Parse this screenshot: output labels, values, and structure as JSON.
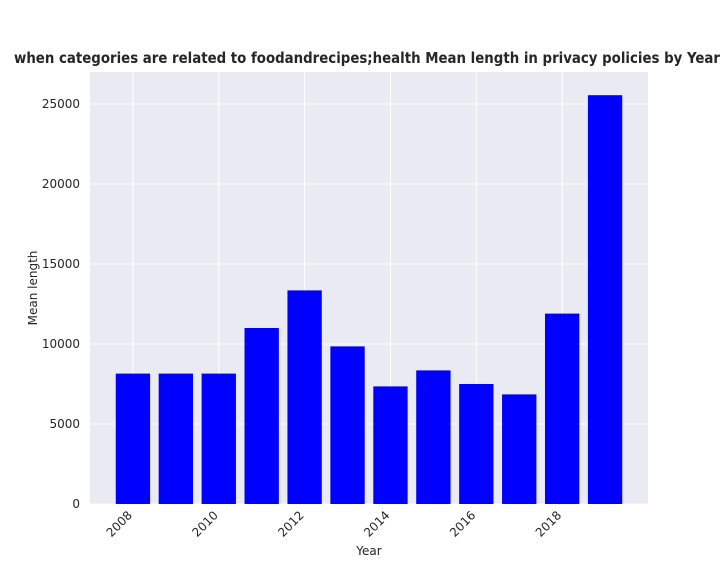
{
  "chart_data": {
    "type": "bar",
    "title": "when categories are related to foodandrecipes;health Mean length in privacy policies by Year",
    "xlabel": "Year",
    "ylabel": "Mean length",
    "categories": [
      2008,
      2009,
      2010,
      2011,
      2012,
      2013,
      2014,
      2015,
      2016,
      2017,
      2018,
      2019
    ],
    "values": [
      8150,
      8150,
      8150,
      11000,
      13350,
      9850,
      7350,
      8350,
      7500,
      6850,
      11900,
      25550
    ],
    "x_tick_labels": [
      "2008",
      "2010",
      "2012",
      "2014",
      "2016",
      "2018"
    ],
    "x_tick_values": [
      2008,
      2010,
      2012,
      2014,
      2016,
      2018
    ],
    "y_tick_labels": [
      "0",
      "5000",
      "10000",
      "15000",
      "20000",
      "25000"
    ],
    "y_tick_values": [
      0,
      5000,
      10000,
      15000,
      20000,
      25000
    ],
    "ylim": [
      0,
      27000
    ],
    "xlim": [
      2007.0,
      2020.0
    ],
    "grid": true,
    "colors": {
      "bar": "#0000ff",
      "plot_background": "#eaeaf2",
      "grid": "#ffffff",
      "text": "#262626"
    }
  }
}
